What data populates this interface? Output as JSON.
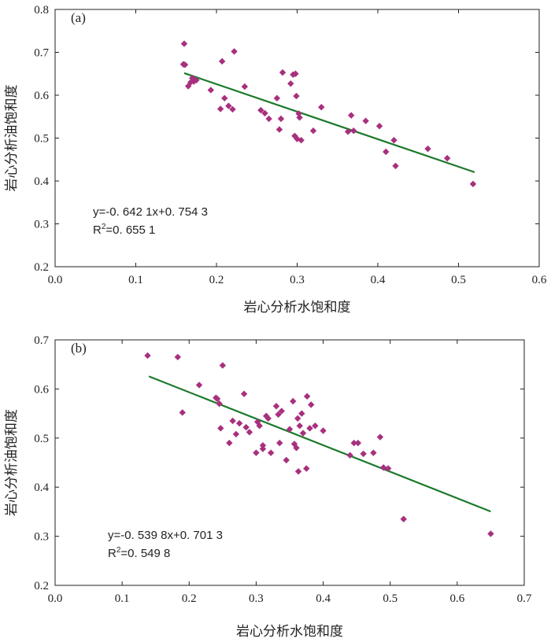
{
  "chart_data": [
    {
      "type": "scatter",
      "panel_label": "(a)",
      "xlabel": "岩心分析水饱和度",
      "ylabel": "岩心分析油饱和度",
      "xlim": [
        0.0,
        0.6
      ],
      "ylim": [
        0.2,
        0.8
      ],
      "xticks": [
        "0.0",
        "0.1",
        "0.2",
        "0.3",
        "0.4",
        "0.5",
        "0.6"
      ],
      "yticks": [
        "0.2",
        "0.3",
        "0.4",
        "0.5",
        "0.6",
        "0.7",
        "0.8"
      ],
      "fit": {
        "slope": -0.6421,
        "intercept": 0.7543,
        "x_range": [
          0.16,
          0.52
        ]
      },
      "equation": "y=-0. 642 1x+0. 754 3",
      "r2_prefix": "R",
      "r2_sup": "2",
      "r2_value": "=0. 655 1",
      "colors": {
        "points": "#a8307e",
        "fit_line": "#1c7a2c"
      },
      "points": [
        [
          0.16,
          0.72
        ],
        [
          0.159,
          0.672
        ],
        [
          0.161,
          0.671
        ],
        [
          0.165,
          0.621
        ],
        [
          0.168,
          0.63
        ],
        [
          0.17,
          0.64
        ],
        [
          0.172,
          0.632
        ],
        [
          0.175,
          0.635
        ],
        [
          0.193,
          0.612
        ],
        [
          0.205,
          0.568
        ],
        [
          0.207,
          0.679
        ],
        [
          0.21,
          0.593
        ],
        [
          0.215,
          0.575
        ],
        [
          0.22,
          0.567
        ],
        [
          0.222,
          0.702
        ],
        [
          0.235,
          0.62
        ],
        [
          0.255,
          0.565
        ],
        [
          0.26,
          0.558
        ],
        [
          0.265,
          0.545
        ],
        [
          0.275,
          0.593
        ],
        [
          0.278,
          0.52
        ],
        [
          0.28,
          0.545
        ],
        [
          0.282,
          0.653
        ],
        [
          0.292,
          0.627
        ],
        [
          0.295,
          0.648
        ],
        [
          0.297,
          0.505
        ],
        [
          0.298,
          0.65
        ],
        [
          0.299,
          0.598
        ],
        [
          0.3,
          0.498
        ],
        [
          0.302,
          0.557
        ],
        [
          0.303,
          0.548
        ],
        [
          0.305,
          0.495
        ],
        [
          0.32,
          0.517
        ],
        [
          0.33,
          0.572
        ],
        [
          0.363,
          0.515
        ],
        [
          0.367,
          0.553
        ],
        [
          0.37,
          0.517
        ],
        [
          0.385,
          0.54
        ],
        [
          0.402,
          0.528
        ],
        [
          0.41,
          0.468
        ],
        [
          0.42,
          0.495
        ],
        [
          0.422,
          0.435
        ],
        [
          0.462,
          0.475
        ],
        [
          0.486,
          0.453
        ],
        [
          0.518,
          0.393
        ]
      ]
    },
    {
      "type": "scatter",
      "panel_label": "(b)",
      "xlabel": "岩心分析水饱和度",
      "ylabel": "岩心分析油饱和度",
      "xlim": [
        0.0,
        0.7
      ],
      "ylim": [
        0.2,
        0.7
      ],
      "xticks": [
        "0.0",
        "0.1",
        "0.2",
        "0.3",
        "0.4",
        "0.5",
        "0.6",
        "0.7"
      ],
      "yticks": [
        "0.2",
        "0.3",
        "0.4",
        "0.5",
        "0.6",
        "0.7"
      ],
      "fit": {
        "slope": -0.5398,
        "intercept": 0.7013,
        "x_range": [
          0.14,
          0.65
        ]
      },
      "equation": "y=-0. 539 8x+0. 701 3",
      "r2_prefix": "R",
      "r2_sup": "2",
      "r2_value": "=0. 549 8",
      "colors": {
        "points": "#a8307e",
        "fit_line": "#1c7a2c"
      },
      "points": [
        [
          0.138,
          0.668
        ],
        [
          0.183,
          0.665
        ],
        [
          0.19,
          0.552
        ],
        [
          0.215,
          0.608
        ],
        [
          0.24,
          0.582
        ],
        [
          0.242,
          0.58
        ],
        [
          0.245,
          0.57
        ],
        [
          0.247,
          0.52
        ],
        [
          0.25,
          0.648
        ],
        [
          0.26,
          0.49
        ],
        [
          0.265,
          0.535
        ],
        [
          0.27,
          0.508
        ],
        [
          0.275,
          0.53
        ],
        [
          0.282,
          0.59
        ],
        [
          0.285,
          0.522
        ],
        [
          0.29,
          0.512
        ],
        [
          0.3,
          0.47
        ],
        [
          0.302,
          0.533
        ],
        [
          0.305,
          0.525
        ],
        [
          0.31,
          0.485
        ],
        [
          0.31,
          0.478
        ],
        [
          0.315,
          0.545
        ],
        [
          0.318,
          0.54
        ],
        [
          0.322,
          0.47
        ],
        [
          0.33,
          0.565
        ],
        [
          0.333,
          0.548
        ],
        [
          0.335,
          0.49
        ],
        [
          0.338,
          0.555
        ],
        [
          0.345,
          0.455
        ],
        [
          0.35,
          0.518
        ],
        [
          0.355,
          0.575
        ],
        [
          0.357,
          0.488
        ],
        [
          0.36,
          0.48
        ],
        [
          0.362,
          0.54
        ],
        [
          0.363,
          0.432
        ],
        [
          0.365,
          0.525
        ],
        [
          0.368,
          0.55
        ],
        [
          0.37,
          0.51
        ],
        [
          0.375,
          0.438
        ],
        [
          0.376,
          0.585
        ],
        [
          0.38,
          0.52
        ],
        [
          0.382,
          0.568
        ],
        [
          0.388,
          0.525
        ],
        [
          0.4,
          0.515
        ],
        [
          0.44,
          0.465
        ],
        [
          0.446,
          0.49
        ],
        [
          0.452,
          0.49
        ],
        [
          0.46,
          0.468
        ],
        [
          0.475,
          0.47
        ],
        [
          0.485,
          0.502
        ],
        [
          0.49,
          0.44
        ],
        [
          0.497,
          0.438
        ],
        [
          0.52,
          0.335
        ],
        [
          0.65,
          0.305
        ]
      ]
    }
  ]
}
